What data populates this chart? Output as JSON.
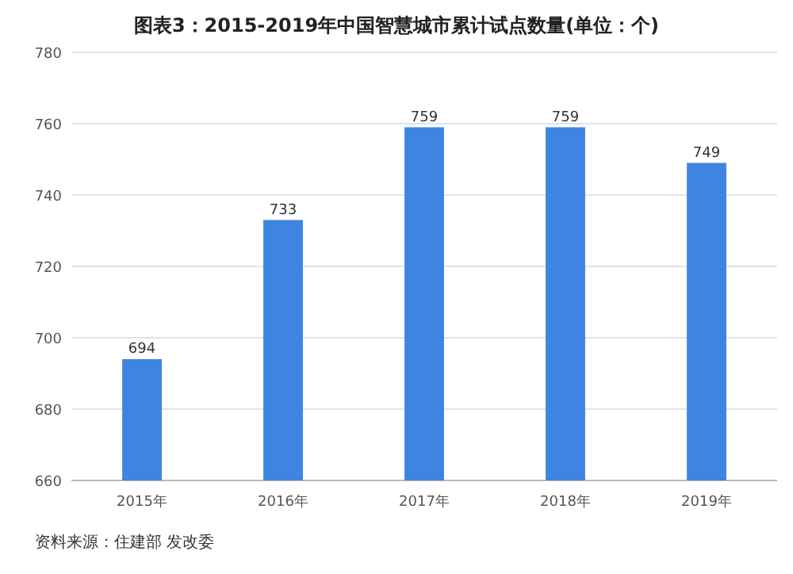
{
  "chart_data": {
    "type": "bar",
    "title": "图表3：2015-2019年中国智慧城市累计试点数量(单位：个)",
    "categories": [
      "2015年",
      "2016年",
      "2017年",
      "2018年",
      "2019年"
    ],
    "values": [
      694,
      733,
      759,
      759,
      749
    ],
    "color": "#3d85e0",
    "ylim": [
      660,
      780
    ],
    "yticks": [
      660,
      680,
      700,
      720,
      740,
      760,
      780
    ],
    "grid": "y",
    "data_labels": true,
    "annotations": [
      "资料来源：住建部 发改委"
    ]
  }
}
